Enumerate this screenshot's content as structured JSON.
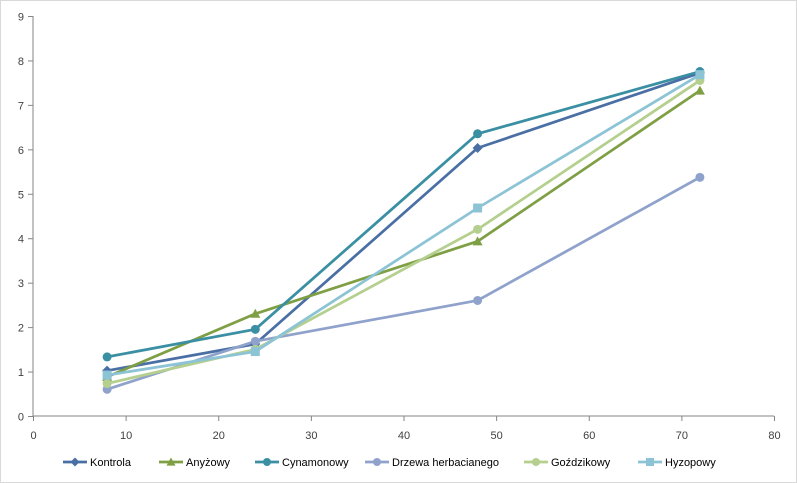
{
  "chart_data": {
    "type": "line",
    "title": "",
    "xlabel": "",
    "ylabel": "",
    "xlim": [
      0,
      80
    ],
    "ylim": [
      0,
      9
    ],
    "x_ticks": [
      0,
      10,
      20,
      30,
      40,
      50,
      60,
      70,
      80
    ],
    "y_ticks": [
      0,
      1,
      2,
      3,
      4,
      5,
      6,
      7,
      8,
      9
    ],
    "grid": false,
    "legend_position": "bottom",
    "series": [
      {
        "name": "Kontrola",
        "color": "#4a6fa5",
        "marker": "diamond",
        "x": [
          8,
          24,
          48,
          72
        ],
        "y": [
          1.02,
          1.62,
          6.03,
          7.72
        ]
      },
      {
        "name": "Anyżowy",
        "color": "#7f9f45",
        "marker": "triangle",
        "x": [
          8,
          24,
          48,
          72
        ],
        "y": [
          0.88,
          2.3,
          3.93,
          7.32
        ]
      },
      {
        "name": "Cynamonowy",
        "color": "#3a8fa3",
        "marker": "circle",
        "x": [
          8,
          24,
          48,
          72
        ],
        "y": [
          1.33,
          1.95,
          6.35,
          7.75
        ]
      },
      {
        "name": "Drzewa herbacianego",
        "color": "#8fa2cb",
        "marker": "circle",
        "x": [
          8,
          24,
          48,
          72
        ],
        "y": [
          0.6,
          1.68,
          2.6,
          5.37
        ]
      },
      {
        "name": "Goździkowy",
        "color": "#b4cf8e",
        "marker": "circle",
        "x": [
          8,
          24,
          48,
          72
        ],
        "y": [
          0.73,
          1.5,
          4.2,
          7.55
        ]
      },
      {
        "name": "Hyzopowy",
        "color": "#8cc4d6",
        "marker": "square",
        "x": [
          8,
          24,
          48,
          72
        ],
        "y": [
          0.92,
          1.45,
          4.68,
          7.68
        ]
      }
    ]
  }
}
